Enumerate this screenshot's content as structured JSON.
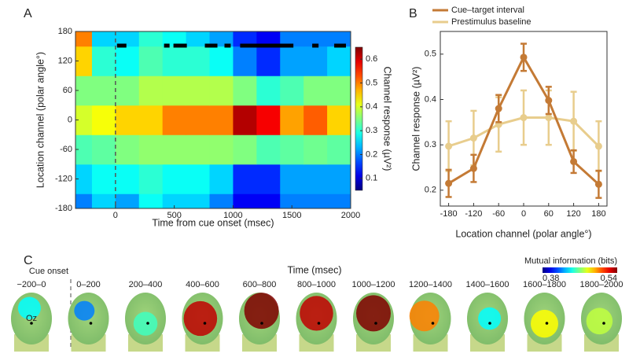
{
  "chart_data": [
    {
      "type": "heatmap",
      "panel_label": "A",
      "xlabel": "Time from cue onset (msec)",
      "ylabel": "Location channel (polar angle°)",
      "colorbar_label": "Channel response (µV²)",
      "x": [
        -300,
        -100,
        100,
        300,
        500,
        700,
        900,
        1100,
        1300,
        1500,
        1700,
        1900
      ],
      "y": [
        -180,
        -120,
        -60,
        0,
        60,
        120,
        180
      ],
      "values": [
        [
          0.2,
          0.25,
          0.22,
          0.28,
          0.25,
          0.25,
          0.2,
          0.12,
          0.12,
          0.2,
          0.2,
          0.2
        ],
        [
          0.25,
          0.28,
          0.28,
          0.3,
          0.28,
          0.28,
          0.25,
          0.15,
          0.15,
          0.22,
          0.22,
          0.22
        ],
        [
          0.32,
          0.33,
          0.35,
          0.36,
          0.36,
          0.36,
          0.36,
          0.35,
          0.32,
          0.33,
          0.34,
          0.33
        ],
        [
          0.4,
          0.42,
          0.45,
          0.45,
          0.5,
          0.5,
          0.5,
          0.62,
          0.58,
          0.48,
          0.52,
          0.45
        ],
        [
          0.35,
          0.35,
          0.35,
          0.38,
          0.38,
          0.38,
          0.38,
          0.35,
          0.3,
          0.32,
          0.35,
          0.35
        ],
        [
          0.45,
          0.3,
          0.28,
          0.32,
          0.3,
          0.3,
          0.28,
          0.2,
          0.15,
          0.22,
          0.22,
          0.25
        ],
        [
          0.5,
          0.25,
          0.25,
          0.3,
          0.28,
          0.25,
          0.22,
          0.15,
          0.12,
          0.2,
          0.2,
          0.2
        ]
      ],
      "xlim": [
        -340,
        2000
      ],
      "xticks": [
        0,
        500,
        1000,
        1500,
        2000
      ],
      "ylim": [
        -180,
        180
      ],
      "yticks": [
        -180,
        -120,
        -60,
        0,
        60,
        120,
        180
      ],
      "clim": [
        0.05,
        0.65
      ],
      "cticks": [
        0.1,
        0.2,
        0.3,
        0.4,
        0.5,
        0.6
      ],
      "reference_line_x": 0,
      "significance": [
        [
          13,
          93
        ],
        [
          413,
          460
        ],
        [
          493,
          607
        ],
        [
          760,
          867
        ],
        [
          927,
          980
        ],
        [
          1060,
          1513
        ],
        [
          1673,
          1727
        ],
        [
          1860,
          1960
        ]
      ]
    },
    {
      "type": "line",
      "panel_label": "B",
      "xlabel": "Location channel (polar angle°)",
      "ylabel": "Channel response (µV²)",
      "x": [
        -180,
        -120,
        -60,
        0,
        60,
        120,
        180
      ],
      "series": [
        {
          "name": "Cue–target interval",
          "color": "#c47a35",
          "values": [
            0.215,
            0.248,
            0.38,
            0.493,
            0.398,
            0.263,
            0.213
          ],
          "errors": [
            0.03,
            0.03,
            0.03,
            0.03,
            0.03,
            0.025,
            0.03
          ]
        },
        {
          "name": "Prestimulus baseline",
          "color": "#e8cd8d",
          "values": [
            0.297,
            0.315,
            0.345,
            0.36,
            0.36,
            0.352,
            0.297
          ],
          "errors": [
            0.055,
            0.06,
            0.06,
            0.06,
            0.06,
            0.065,
            0.055
          ]
        }
      ],
      "xlim": [
        -200,
        200
      ],
      "xticks": [
        -180,
        -120,
        -60,
        0,
        60,
        120,
        180
      ],
      "ylim": [
        0.165,
        0.55
      ],
      "yticks": [
        0.2,
        0.3,
        0.4,
        0.5
      ],
      "legend": "upper left"
    },
    {
      "type": "topomap",
      "panel_label": "C",
      "title": "Time (msec)",
      "annotation": "Cue onset",
      "electrode_label": "Oz",
      "categories": [
        "−200–0",
        "0–200",
        "200–400",
        "400–600",
        "600–800",
        "800–1000",
        "1000–1200",
        "1200–1400",
        "1400–1600",
        "1600–1800",
        "1800–2000"
      ],
      "values": [
        0.44,
        0.42,
        0.45,
        0.53,
        0.54,
        0.53,
        0.54,
        0.5,
        0.44,
        0.48,
        0.47
      ],
      "colorbar": {
        "label": "Mutual information (bits)",
        "lim": [
          0.38,
          0.54
        ]
      }
    }
  ]
}
